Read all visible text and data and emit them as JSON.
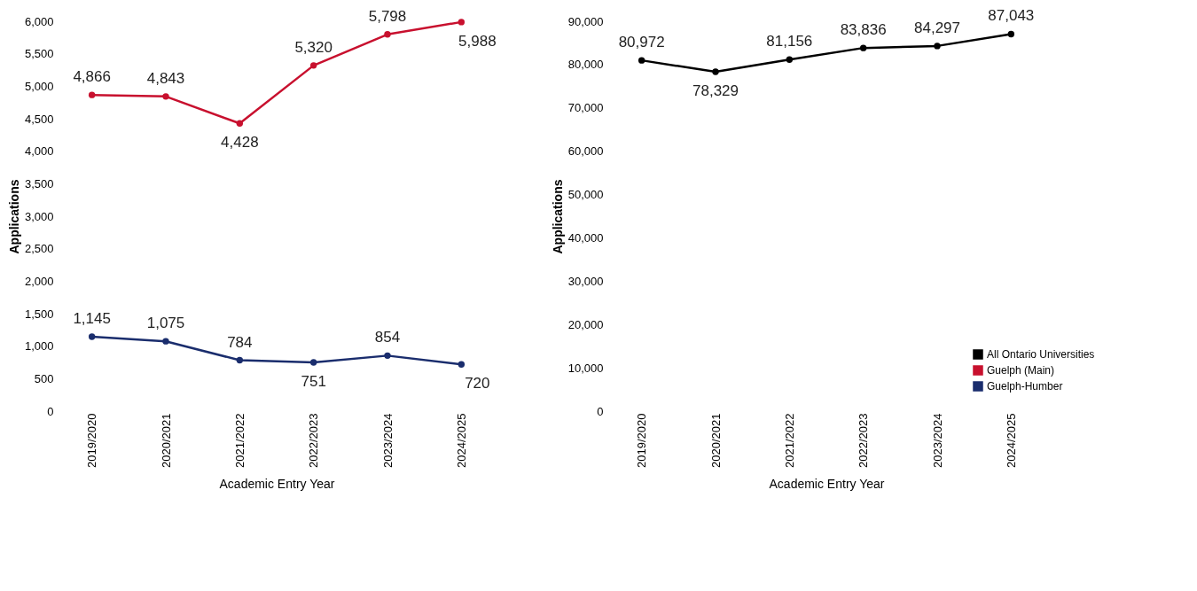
{
  "chart_data": [
    {
      "type": "line",
      "xlabel": "Academic Entry Year",
      "ylabel": "Applications",
      "categories": [
        "2019/2020",
        "2020/2021",
        "2021/2022",
        "2022/2023",
        "2023/2024",
        "2024/2025"
      ],
      "series": [
        {
          "name": "Guelph (Main)",
          "color": "#c8102e",
          "values": [
            4866,
            4843,
            4428,
            5320,
            5798,
            5988
          ],
          "value_labels": [
            "4,866",
            "4,843",
            "4,428",
            "5,320",
            "5,798",
            "5,988"
          ]
        },
        {
          "name": "Guelph-Humber",
          "color": "#1a2d6d",
          "values": [
            1145,
            1075,
            784,
            751,
            854,
            720
          ],
          "value_labels": [
            "1,145",
            "1,075",
            "784",
            "751",
            "854",
            "720"
          ]
        }
      ],
      "ylim": [
        0,
        6000
      ],
      "yticks": [
        0,
        {
          "value": 500,
          "label": "500"
        },
        {
          "value": 1000,
          "label": "1,000"
        },
        {
          "value": 1500,
          "label": "1,500"
        },
        {
          "value": 2000,
          "label": "2,000"
        },
        {
          "value": 2500,
          "label": "2,500"
        },
        {
          "value": 3000,
          "label": "3,000"
        },
        {
          "value": 3500,
          "label": "3,500"
        },
        {
          "value": 4000,
          "label": "4,000"
        },
        {
          "value": 4500,
          "label": "4,500"
        },
        {
          "value": 5000,
          "label": "5,000"
        },
        {
          "value": 5500,
          "label": "5,500"
        },
        {
          "value": 6000,
          "label": "6,000"
        }
      ],
      "marker": "circle",
      "grid": false,
      "legend": "bottom right"
    },
    {
      "type": "line",
      "xlabel": "Academic Entry Year",
      "ylabel": "Applications",
      "categories": [
        "2019/2020",
        "2020/2021",
        "2021/2022",
        "2022/2023",
        "2023/2024",
        "2024/2025"
      ],
      "series": [
        {
          "name": "All Ontario Universities",
          "color": "#000000",
          "values": [
            80972,
            78329,
            81156,
            83836,
            84297,
            87043
          ],
          "value_labels": [
            "80,972",
            "78,329",
            "81,156",
            "83,836",
            "84,297",
            "87,043"
          ]
        }
      ],
      "ylim": [
        0,
        90000
      ],
      "yticks": [
        0,
        {
          "value": 10000,
          "label": "10,000"
        },
        {
          "value": 20000,
          "label": "20,000"
        },
        {
          "value": 30000,
          "label": "30,000"
        },
        {
          "value": 40000,
          "label": "40,000"
        },
        {
          "value": 50000,
          "label": "50,000"
        },
        {
          "value": 60000,
          "label": "60,000"
        },
        {
          "value": 70000,
          "label": "70,000"
        },
        {
          "value": 80000,
          "label": "80,000"
        },
        {
          "value": 90000,
          "label": "90,000"
        }
      ],
      "marker": "circle",
      "grid": false,
      "legend": "bottom right"
    }
  ]
}
